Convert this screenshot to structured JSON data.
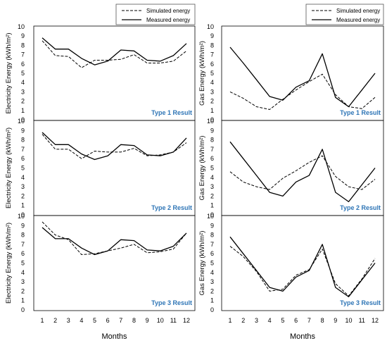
{
  "colors": {
    "result_label": "#2E75B6",
    "line": "#000000"
  },
  "legend": {
    "simulated": "Simulated energy",
    "measured": "Measured energy"
  },
  "chart_data": [
    {
      "type": "line",
      "column": "left",
      "row": 0,
      "ylabel": "Electricity Energy (kWh/m²)",
      "xlabel": "",
      "result_label": "Type 1 Result",
      "x": [
        1,
        2,
        3,
        4,
        5,
        6,
        7,
        8,
        9,
        10,
        11,
        12
      ],
      "ylim": [
        0,
        10
      ],
      "series": [
        {
          "name": "Simulated energy",
          "style": "dashed",
          "values": [
            8.5,
            6.9,
            6.8,
            5.6,
            6.4,
            6.4,
            6.5,
            7.0,
            6.1,
            6.1,
            6.3,
            7.4
          ]
        },
        {
          "name": "Measured energy",
          "style": "solid",
          "values": [
            8.8,
            7.6,
            7.6,
            6.6,
            5.9,
            6.3,
            7.5,
            7.4,
            6.4,
            6.3,
            6.9,
            8.2
          ]
        }
      ]
    },
    {
      "type": "line",
      "column": "left",
      "row": 1,
      "ylabel": "Electricity Energy (kWh/m²)",
      "xlabel": "",
      "result_label": "Type 2 Result",
      "x": [
        1,
        2,
        3,
        4,
        5,
        6,
        7,
        8,
        9,
        10,
        11,
        12
      ],
      "ylim": [
        0,
        10
      ],
      "series": [
        {
          "name": "Simulated energy",
          "style": "dashed",
          "values": [
            8.6,
            7.0,
            7.0,
            6.0,
            6.8,
            6.7,
            6.7,
            7.1,
            6.3,
            6.4,
            6.7,
            7.7
          ]
        },
        {
          "name": "Measured energy",
          "style": "solid",
          "values": [
            8.8,
            7.5,
            7.5,
            6.5,
            5.9,
            6.3,
            7.5,
            7.4,
            6.4,
            6.3,
            6.7,
            8.2
          ]
        }
      ]
    },
    {
      "type": "line",
      "column": "left",
      "row": 2,
      "ylabel": "Electricity Energy (kWh/m²)",
      "xlabel": "Months",
      "result_label": "Type 3 Result",
      "x": [
        1,
        2,
        3,
        4,
        5,
        6,
        7,
        8,
        9,
        10,
        11,
        12
      ],
      "ylim": [
        0,
        10
      ],
      "series": [
        {
          "name": "Simulated energy",
          "style": "dashed",
          "values": [
            9.4,
            8.0,
            7.5,
            5.9,
            6.0,
            6.3,
            6.6,
            7.0,
            6.1,
            6.2,
            6.5,
            8.2
          ]
        },
        {
          "name": "Measured energy",
          "style": "solid",
          "values": [
            8.8,
            7.6,
            7.6,
            6.6,
            5.9,
            6.3,
            7.5,
            7.4,
            6.4,
            6.3,
            6.8,
            8.2
          ]
        }
      ]
    },
    {
      "type": "line",
      "column": "right",
      "row": 0,
      "ylabel": "Gas  Energy (kWh/m²)",
      "xlabel": "",
      "result_label": "Type 1 Result",
      "x": [
        1,
        2,
        3,
        4,
        5,
        6,
        7,
        8,
        9,
        10,
        11,
        12
      ],
      "ylim": [
        0,
        10
      ],
      "series": [
        {
          "name": "Simulated energy",
          "style": "dashed",
          "values": [
            3.0,
            2.3,
            1.4,
            1.1,
            2.2,
            3.2,
            4.1,
            4.9,
            2.7,
            1.4,
            1.2,
            2.4
          ]
        },
        {
          "name": "Measured energy",
          "style": "solid",
          "values": [
            7.8,
            6.1,
            4.3,
            2.5,
            2.1,
            3.5,
            4.2,
            7.1,
            2.4,
            1.4,
            3.2,
            5.0
          ]
        }
      ]
    },
    {
      "type": "line",
      "column": "right",
      "row": 1,
      "ylabel": "Gas Energy (kWh/m²)",
      "xlabel": "",
      "result_label": "Type 2 Result",
      "x": [
        1,
        2,
        3,
        4,
        5,
        6,
        7,
        8,
        9,
        10,
        11,
        12
      ],
      "ylim": [
        0,
        10
      ],
      "series": [
        {
          "name": "Simulated energy",
          "style": "dashed",
          "values": [
            4.6,
            3.5,
            3.0,
            2.7,
            3.9,
            4.7,
            5.6,
            6.3,
            4.1,
            3.0,
            2.7,
            3.8
          ]
        },
        {
          "name": "Measured energy",
          "style": "solid",
          "values": [
            7.8,
            6.0,
            4.2,
            2.4,
            2.0,
            3.5,
            4.2,
            7.0,
            2.4,
            1.4,
            3.2,
            5.0
          ]
        }
      ]
    },
    {
      "type": "line",
      "column": "right",
      "row": 2,
      "ylabel": "Gas Energy (kWh/m²)",
      "xlabel": "Months",
      "result_label": "Type 3 Result",
      "x": [
        1,
        2,
        3,
        4,
        5,
        6,
        7,
        8,
        9,
        10,
        11,
        12
      ],
      "ylim": [
        0,
        10
      ],
      "series": [
        {
          "name": "Simulated energy",
          "style": "dashed",
          "values": [
            6.8,
            5.7,
            4.1,
            2.0,
            2.2,
            3.7,
            4.3,
            6.5,
            2.8,
            1.5,
            3.3,
            5.5
          ]
        },
        {
          "name": "Measured energy",
          "style": "solid",
          "values": [
            7.8,
            6.0,
            4.2,
            2.4,
            2.0,
            3.5,
            4.2,
            7.0,
            2.4,
            1.4,
            3.2,
            5.0
          ]
        }
      ]
    }
  ]
}
